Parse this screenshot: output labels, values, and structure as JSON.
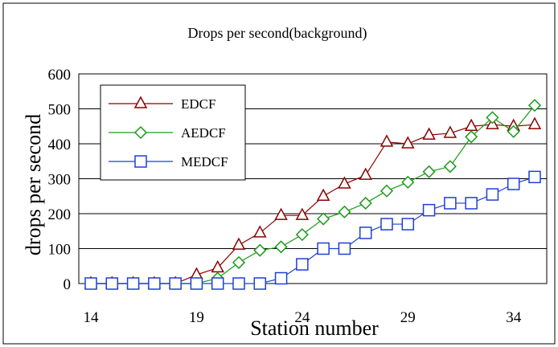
{
  "chart_data": {
    "type": "line",
    "title": "Drops per second(background)",
    "xlabel": "Station number",
    "ylabel": "drops per second",
    "x": [
      14,
      15,
      16,
      17,
      18,
      19,
      20,
      21,
      22,
      23,
      24,
      25,
      26,
      27,
      28,
      29,
      30,
      31,
      32,
      33,
      34,
      35
    ],
    "xlim": [
      14,
      35
    ],
    "ylim": [
      0,
      600
    ],
    "xticks": [
      "14",
      "19",
      "24",
      "29",
      "34"
    ],
    "yticks": [
      "0",
      "100",
      "200",
      "300",
      "400",
      "500",
      "600"
    ],
    "grid": "horizontal",
    "legend_position": "top-left",
    "series": [
      {
        "name": "EDCF",
        "marker": "triangle",
        "color": "#8b0000",
        "values": [
          0,
          0,
          0,
          0,
          0,
          25,
          45,
          110,
          145,
          195,
          195,
          250,
          285,
          310,
          405,
          400,
          425,
          430,
          450,
          455,
          450,
          455
        ]
      },
      {
        "name": "AEDCF",
        "marker": "diamond",
        "color": "#1a9a1a",
        "values": [
          0,
          0,
          0,
          0,
          0,
          0,
          15,
          60,
          95,
          105,
          140,
          185,
          205,
          230,
          265,
          290,
          320,
          335,
          420,
          475,
          435,
          510
        ]
      },
      {
        "name": "MEDCF",
        "marker": "square",
        "color": "#1f3fd6",
        "values": [
          0,
          0,
          0,
          0,
          0,
          0,
          0,
          0,
          0,
          15,
          55,
          100,
          100,
          145,
          170,
          170,
          210,
          230,
          230,
          255,
          285,
          305
        ]
      }
    ]
  }
}
